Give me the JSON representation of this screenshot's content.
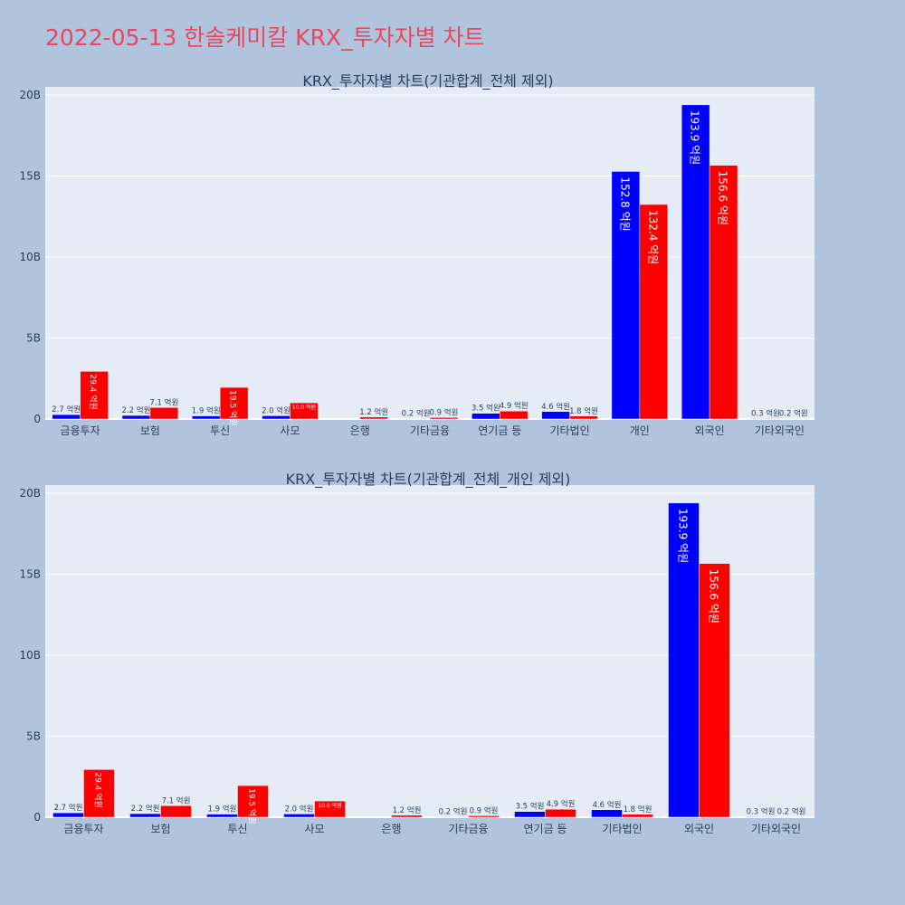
{
  "page_title": "2022-05-13 한솔케미칼 KRX_투자자별 차트",
  "colors": {
    "background": "#b0c4de",
    "plot_bg": "#e5ecf6",
    "title": "#e8475f",
    "buy": "#0000ff",
    "sell": "#ff0000",
    "text": "#2a3f5f"
  },
  "chart_data": [
    {
      "type": "bar",
      "title": "KRX_투자자별 차트(기관합계_전체 제외)",
      "categories": [
        "금융투자",
        "보험",
        "투신",
        "사모",
        "은행",
        "기타금융",
        "연기금 등",
        "기타법인",
        "개인",
        "외국인",
        "기타외국인"
      ],
      "series": [
        {
          "color": "#0000ff",
          "values": [
            0.27,
            0.22,
            0.19,
            0.2,
            0.0,
            0.02,
            0.35,
            0.46,
            15.28,
            19.39,
            0.03
          ],
          "labels": [
            "2.7 억원",
            "2.2 억원",
            "1.9 억원",
            "2.0 억원",
            "",
            "0.2 억원",
            "3.5 억원",
            "4.6 억원",
            "152.8 억원",
            "193.9 억원",
            "0.3 억원"
          ]
        },
        {
          "color": "#ff0000",
          "values": [
            2.94,
            0.71,
            1.95,
            1.0,
            0.12,
            0.09,
            0.49,
            0.18,
            13.24,
            15.66,
            0.02
          ],
          "labels": [
            "29.4 억원",
            "7.1 억원",
            "19.5 억원",
            "10.0 억원",
            "1.2 억원",
            "0.9 억원",
            "4.9 억원",
            "1.8 억원",
            "132.4 억원",
            "156.6 억원",
            "0.2 억원"
          ]
        }
      ],
      "yticks": [
        0,
        5,
        10,
        15,
        20
      ],
      "ytick_labels": [
        "0",
        "5B",
        "10B",
        "15B",
        "20B"
      ],
      "ylim": [
        0,
        20.5
      ],
      "grid": true,
      "legend": false
    },
    {
      "type": "bar",
      "title": "KRX_투자자별 차트(기관합계_전체_개인 제외)",
      "categories": [
        "금융투자",
        "보험",
        "투신",
        "사모",
        "은행",
        "기타금융",
        "연기금 등",
        "기타법인",
        "외국인",
        "기타외국인"
      ],
      "series": [
        {
          "color": "#0000ff",
          "values": [
            0.27,
            0.22,
            0.19,
            0.2,
            0.0,
            0.02,
            0.35,
            0.46,
            19.39,
            0.03
          ],
          "labels": [
            "2.7 억원",
            "2.2 억원",
            "1.9 억원",
            "2.0 억원",
            "",
            "0.2 억원",
            "3.5 억원",
            "4.6 억원",
            "193.9 억원",
            "0.3 억원"
          ]
        },
        {
          "color": "#ff0000",
          "values": [
            2.94,
            0.71,
            1.95,
            1.0,
            0.12,
            0.09,
            0.49,
            0.18,
            15.66,
            0.02
          ],
          "labels": [
            "29.4 억원",
            "7.1 억원",
            "19.5 억원",
            "10.0 억원",
            "1.2 억원",
            "0.9 억원",
            "4.9 억원",
            "1.8 억원",
            "156.6 억원",
            "0.2 억원"
          ]
        }
      ],
      "yticks": [
        0,
        5,
        10,
        15,
        20
      ],
      "ytick_labels": [
        "0",
        "5B",
        "10B",
        "15B",
        "20B"
      ],
      "ylim": [
        0,
        20.5
      ],
      "grid": true,
      "legend": false
    }
  ]
}
